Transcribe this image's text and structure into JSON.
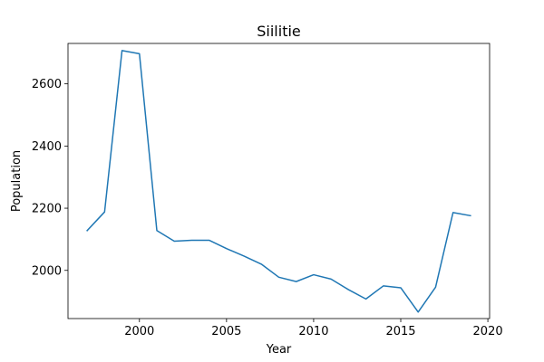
{
  "chart_data": {
    "type": "line",
    "title": "Siilitie",
    "xlabel": "Year",
    "ylabel": "Population",
    "xlim": [
      1995.9,
      2020.1
    ],
    "ylim": [
      1845,
      2730
    ],
    "xticks": [
      2000,
      2005,
      2010,
      2015,
      2020
    ],
    "yticks": [
      2000,
      2200,
      2400,
      2600
    ],
    "grid": false,
    "color": "#1f77b4",
    "series": [
      {
        "name": "Population",
        "x": [
          1997,
          1998,
          1999,
          2000,
          2001,
          2002,
          2003,
          2004,
          2005,
          2006,
          2007,
          2008,
          2009,
          2010,
          2011,
          2012,
          2013,
          2014,
          2015,
          2016,
          2017,
          2018,
          2019
        ],
        "values": [
          2128,
          2188,
          2707,
          2697,
          2128,
          2094,
          2097,
          2097,
          2070,
          2046,
          2020,
          1978,
          1964,
          1986,
          1972,
          1938,
          1908,
          1950,
          1944,
          1866,
          1946,
          2186,
          2176
        ]
      }
    ]
  }
}
